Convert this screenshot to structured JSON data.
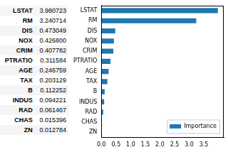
{
  "chart_data": {
    "type": "bar",
    "orientation": "horizontal",
    "categories": [
      "LSTAT",
      "RM",
      "DIS",
      "NOX",
      "CRIM",
      "PTRATIO",
      "AGE",
      "TAX",
      "B",
      "INDUS",
      "RAD",
      "CHAS",
      "ZN"
    ],
    "series": [
      {
        "name": "Importance",
        "color": "#1f77b4",
        "values": [
          3.980723,
          3.240714,
          0.473049,
          0.4268,
          0.407782,
          0.311584,
          0.246759,
          0.203129,
          0.112252,
          0.094221,
          0.061467,
          0.015396,
          0.012784
        ]
      }
    ],
    "xlim": [
      0,
      4.18
    ],
    "xticks": [
      {
        "value": 0,
        "label": "0.0"
      },
      {
        "value": 0.5,
        "label": "0.5"
      },
      {
        "value": 1,
        "label": "1.0"
      },
      {
        "value": 1.5,
        "label": "1.5"
      },
      {
        "value": 2,
        "label": "2.0"
      },
      {
        "value": 2.5,
        "label": "2.5"
      },
      {
        "value": 3,
        "label": "3.0"
      },
      {
        "value": 3.5,
        "label": "3.5"
      }
    ],
    "grid": false,
    "legend": "lower right"
  },
  "table": {
    "rows": [
      [
        "LSTAT",
        "3.980723"
      ],
      [
        "RM",
        "3.240714"
      ],
      [
        "DIS",
        "0.473049"
      ],
      [
        "NOX",
        "0.426800"
      ],
      [
        "CRIM",
        "0.407782"
      ],
      [
        "PTRATIO",
        "0.311584"
      ],
      [
        "AGE",
        "0.246759"
      ],
      [
        "TAX",
        "0.203129"
      ],
      [
        "B",
        "0.112252"
      ],
      [
        "INDUS",
        "0.094221"
      ],
      [
        "RAD",
        "0.061467"
      ],
      [
        "CHAS",
        "0.015396"
      ],
      [
        "ZN",
        "0.012784"
      ]
    ]
  }
}
